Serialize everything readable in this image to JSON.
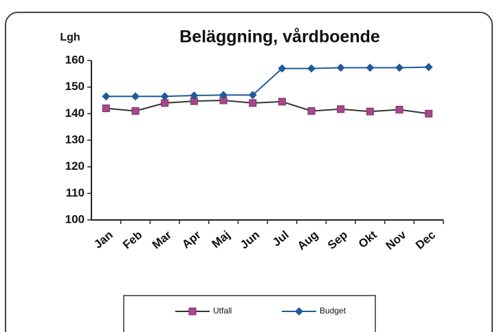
{
  "chart_data": {
    "type": "line",
    "title": "Beläggning, vårdboende",
    "ylabel": "Lgh",
    "categories": [
      "Jan",
      "Feb",
      "Mar",
      "Apr",
      "Maj",
      "Jun",
      "Jul",
      "Aug",
      "Sep",
      "Okt",
      "Nov",
      "Dec"
    ],
    "series": [
      {
        "name": "Utfall",
        "color": "#a8488a",
        "values": [
          142,
          141,
          144,
          144.7,
          145,
          144,
          144.5,
          141,
          141.7,
          140.8,
          141.5,
          140
        ]
      },
      {
        "name": "Budget",
        "color": "#1f5a9a",
        "values": [
          146.5,
          146.5,
          146.5,
          146.8,
          147,
          147,
          157,
          157,
          157.3,
          157.3,
          157.3,
          157.5
        ]
      }
    ],
    "ylim": [
      100,
      160
    ],
    "yticks": [
      100,
      110,
      120,
      130,
      140,
      150,
      160
    ]
  }
}
